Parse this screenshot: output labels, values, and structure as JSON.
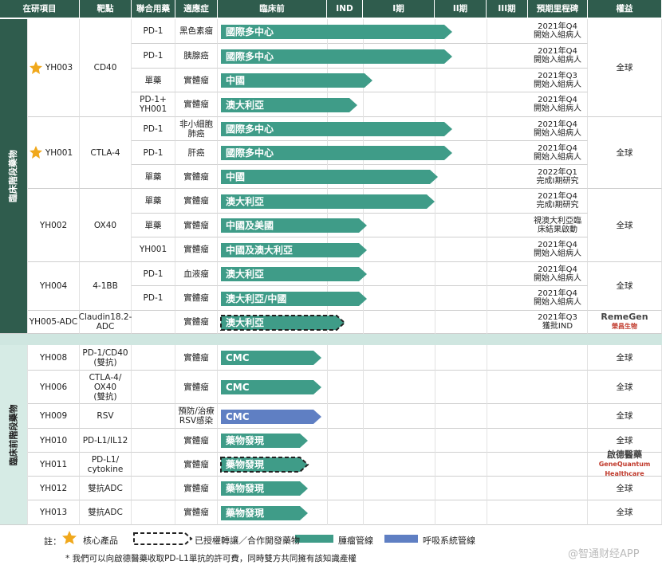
{
  "header": [
    "在研項目",
    "靶點",
    "聯合用藥",
    "適應症",
    "臨床前",
    "IND",
    "I期",
    "II期",
    "III期",
    "預期里程碑",
    "權益"
  ],
  "sections": [
    {
      "label": "臨床階段藥物",
      "projects": [
        {
          "id": "YH003",
          "target": "CD40",
          "rights": [
            "全球"
          ],
          "rows": [
            {
              "combo": "PD-1",
              "indication": "黑色素瘤",
              "program": "國際多中心",
              "milestone": "2021年Q4\n開始入組病人"
            },
            {
              "combo": "PD-1",
              "indication": "胰腺癌",
              "program": "國際多中心",
              "milestone": "2021年Q4\n開始入組病人"
            },
            {
              "combo": "單藥",
              "indication": "實體瘤",
              "program": "中國",
              "milestone": "2021年Q3\n開始入組病人"
            },
            {
              "combo": "PD-1+\nYH001",
              "indication": "實體瘤",
              "program": "澳大利亞",
              "milestone": "2021年Q4\n開始入組病人"
            }
          ]
        },
        {
          "id": "YH001",
          "target": "CTLA-4",
          "rights": [
            "全球"
          ],
          "rows": [
            {
              "combo": "PD-1",
              "indication": "非小細胞\n肺癌",
              "program": "國際多中心",
              "milestone": "2021年Q4\n開始入組病人"
            },
            {
              "combo": "PD-1",
              "indication": "肝癌",
              "program": "國際多中心",
              "milestone": "2021年Q4\n開始入組病人"
            },
            {
              "combo": "單藥",
              "indication": "實體瘤",
              "program": "中國",
              "milestone": "2022年Q1\n完成I期研究"
            }
          ]
        },
        {
          "id": "YH002",
          "target": "OX40",
          "rights": [
            "全球"
          ],
          "rows": [
            {
              "combo": "單藥",
              "indication": "實體瘤",
              "program": "澳大利亞",
              "milestone": "2021年Q4\n完成I期研究"
            },
            {
              "combo": "單藥",
              "indication": "實體瘤",
              "program": "中國及美國",
              "milestone": "視澳大利亞臨\n床結果啟動"
            },
            {
              "combo": "YH001",
              "indication": "實體瘤",
              "program": "中國及澳大利亞",
              "milestone": "2021年Q4\n開始入組病人"
            }
          ]
        },
        {
          "id": "YH004",
          "target": "4-1BB",
          "rights": [
            "全球"
          ],
          "rows": [
            {
              "combo": "PD-1",
              "indication": "血液瘤",
              "program": "澳大利亞",
              "milestone": "2021年Q4\n開始入組病人"
            },
            {
              "combo": "PD-1",
              "indication": "實體瘤",
              "program": "澳大利亞/中國",
              "milestone": "2021年Q4\n開始入組病人"
            }
          ]
        },
        {
          "id": "YH005-ADC",
          "target": "Claudin18.2-\nADC",
          "rights": [
            "RemeGen",
            "榮昌生物"
          ],
          "rows": [
            {
              "indication": "實體瘤",
              "program": "澳大利亞",
              "milestone": "2021年Q3\n獲批IND"
            }
          ]
        }
      ]
    },
    {
      "label": "臨床前階段藥物",
      "projects": [
        {
          "id": "YH008",
          "target": "PD-1/CD40\n(雙抗)",
          "rights": [
            "全球"
          ],
          "rows": [
            {
              "indication": "實體瘤",
              "program": "CMC"
            }
          ]
        },
        {
          "id": "YH006",
          "target": "CTLA-4/\nOX40\n(雙抗)",
          "rights": [
            "全球"
          ],
          "rows": [
            {
              "indication": "實體瘤",
              "program": "CMC"
            }
          ]
        },
        {
          "id": "YH009",
          "target": "RSV",
          "rights": [
            "全球"
          ],
          "rows": [
            {
              "indication": "預防/治療\nRSV感染",
              "program": "CMC"
            }
          ]
        },
        {
          "id": "YH010",
          "target": "PD-L1/IL12",
          "rights": [
            "全球"
          ],
          "rows": [
            {
              "indication": "實體瘤",
              "program": "藥物發現"
            }
          ]
        },
        {
          "id": "YH011",
          "target": "PD-L1/\ncytokine",
          "rights": [
            "啟德醫藥",
            "GeneQuantum Healthcare"
          ],
          "rows": [
            {
              "indication": "實體瘤",
              "program": "藥物發現"
            }
          ]
        },
        {
          "id": "YH012",
          "target": "雙抗ADC",
          "rights": [
            "全球"
          ],
          "rows": [
            {
              "indication": "實體瘤",
              "program": "藥物發現"
            }
          ]
        },
        {
          "id": "YH013",
          "target": "雙抗ADC",
          "rights": [
            "全球"
          ],
          "rows": [
            {
              "indication": "實體瘤",
              "program": "藥物發現"
            }
          ]
        }
      ]
    }
  ],
  "legend": {
    "note": "註：",
    "core": "核心產品",
    "licensed": "已授權轉讓／合作開發藥物",
    "oncology": "腫瘤管線",
    "respiratory": "呼吸系統管線"
  },
  "footnote": "* 我們可以向啟德醫藥收取PD-L1單抗的許可費，同時雙方共同擁有該知識產權",
  "watermark": "@智通财经APP"
}
